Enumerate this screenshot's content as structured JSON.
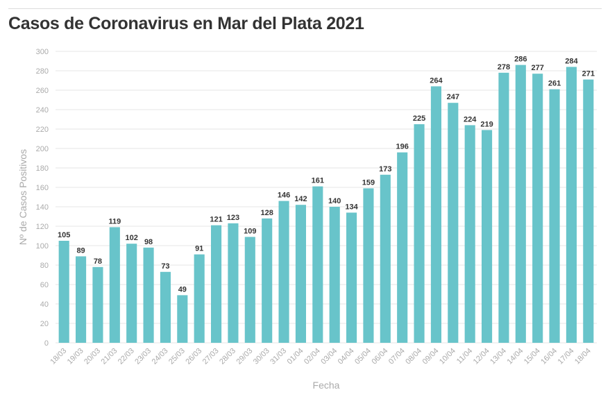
{
  "colors": {
    "bar": "#68c4ca",
    "grid": "#e6e6e6",
    "axis_text": "#aaaaaa",
    "title": "#333333"
  },
  "chart_data": {
    "type": "bar",
    "title": "Casos de Coronavirus en Mar del Plata 2021",
    "xlabel": "Fecha",
    "ylabel": "Nº de Casos Positivos",
    "ylim": [
      0,
      300
    ],
    "yticks": [
      0,
      20,
      40,
      60,
      80,
      100,
      120,
      140,
      160,
      180,
      200,
      220,
      240,
      260,
      280,
      300
    ],
    "grid": true,
    "categories": [
      "18/03",
      "19/03",
      "20/03",
      "21/03",
      "22/03",
      "23/03",
      "24/03",
      "25/03",
      "26/03",
      "27/03",
      "28/03",
      "29/03",
      "30/03",
      "31/03",
      "01/04",
      "02/04",
      "03/04",
      "04/04",
      "05/04",
      "06/04",
      "07/04",
      "08/04",
      "09/04",
      "10/04",
      "11/04",
      "12/04",
      "13/04",
      "14/04",
      "15/04",
      "16/04",
      "17/04",
      "18/04"
    ],
    "values": [
      105,
      89,
      78,
      119,
      102,
      98,
      73,
      49,
      91,
      121,
      123,
      109,
      128,
      146,
      142,
      161,
      140,
      134,
      159,
      173,
      196,
      225,
      264,
      247,
      224,
      219,
      278,
      286,
      277,
      261,
      284,
      271
    ]
  }
}
